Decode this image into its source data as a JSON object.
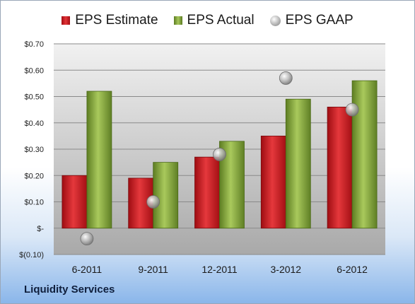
{
  "chart_data": {
    "type": "bar",
    "categories": [
      "6-2011",
      "9-2011",
      "12-2011",
      "3-2012",
      "6-2012"
    ],
    "series": [
      {
        "name": "EPS Estimate",
        "kind": "bar",
        "color": "#d0262b",
        "values": [
          0.2,
          0.19,
          0.27,
          0.35,
          0.46
        ]
      },
      {
        "name": "EPS Actual",
        "kind": "bar",
        "color": "#8fb043",
        "values": [
          0.52,
          0.25,
          0.33,
          0.49,
          0.56
        ]
      },
      {
        "name": "EPS GAAP",
        "kind": "scatter",
        "color": "#a8a8a8",
        "values": [
          -0.04,
          0.1,
          0.28,
          0.57,
          0.45
        ]
      }
    ],
    "y_ticks": [
      "$0.70",
      "$0.60",
      "$0.50",
      "$0.40",
      "$0.30",
      "$0.20",
      "$0.10",
      "$-",
      "$(0.10)"
    ],
    "y_tick_values": [
      0.7,
      0.6,
      0.5,
      0.4,
      0.3,
      0.2,
      0.1,
      0.0,
      -0.1
    ],
    "ylim": [
      -0.1,
      0.7
    ],
    "grid": true,
    "legend_position": "top"
  },
  "company_label": "Liquidity Services"
}
